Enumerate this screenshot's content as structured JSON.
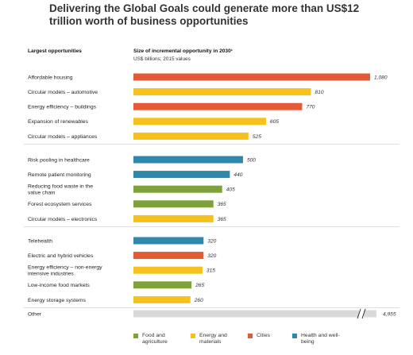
{
  "header": {
    "title": "Delivering the Global Goals could generate more than US$12 trillion worth of business opportunities"
  },
  "chart_data": {
    "type": "bar",
    "orientation": "horizontal",
    "category_header": "Largest opportunities",
    "value_header": "Size of incremental opportunity in 2030¹",
    "value_subheader": "US$ billions; 2015 values",
    "xlim": [
      0,
      1080
    ],
    "grid": false,
    "groups": [
      [
        {
          "label": "Affordable housing",
          "value": 1080,
          "display": "1,080",
          "sector": "Cities"
        },
        {
          "label": "Circular models – automotive",
          "value": 810,
          "display": "810",
          "sector": "Energy and materials"
        },
        {
          "label": "Energy efficiency – buildings",
          "value": 770,
          "display": "770",
          "sector": "Cities"
        },
        {
          "label": "Expansion of renewables",
          "value": 605,
          "display": "605",
          "sector": "Energy and materials"
        },
        {
          "label": "Circular models – appliances",
          "value": 525,
          "display": "525",
          "sector": "Energy and materials"
        }
      ],
      [
        {
          "label": "Risk pooling in healthcare",
          "value": 500,
          "display": "500",
          "sector": "Health and well-being"
        },
        {
          "label": "Remote patient monitoring",
          "value": 440,
          "display": "440",
          "sector": "Health and well-being"
        },
        {
          "label": "Reducing food waste in the value chain",
          "value": 405,
          "display": "405",
          "sector": "Food and agriculture"
        },
        {
          "label": "Forest ecosystem services",
          "value": 365,
          "display": "365",
          "sector": "Food and agriculture"
        },
        {
          "label": "Circular models – electronics",
          "value": 365,
          "display": "365",
          "sector": "Energy and materials"
        }
      ],
      [
        {
          "label": "Telehealth",
          "value": 320,
          "display": "320",
          "sector": "Health and well-being"
        },
        {
          "label": "Electric and hybrid vehicles",
          "value": 320,
          "display": "320",
          "sector": "Cities"
        },
        {
          "label": "Energy efficiency – non-energy intensive industries",
          "value": 315,
          "display": "315",
          "sector": "Energy and materials"
        },
        {
          "label": "Low-income food markets",
          "value": 265,
          "display": "265",
          "sector": "Food and agriculture"
        },
        {
          "label": "Energy storage systems",
          "value": 260,
          "display": "260",
          "sector": "Energy and materials"
        }
      ]
    ],
    "other": {
      "label": "Other",
      "value": 4955,
      "display": "4,955",
      "axis_break": true
    },
    "legend_position": "bottom",
    "legend": [
      {
        "name": "Food and agriculture",
        "color": "#7ea23a"
      },
      {
        "name": "Energy and materials",
        "color": "#f5c11c"
      },
      {
        "name": "Cities",
        "color": "#e45a36"
      },
      {
        "name": "Health and well-being",
        "color": "#2e88ac"
      }
    ],
    "other_color": "#d9d9d9"
  }
}
